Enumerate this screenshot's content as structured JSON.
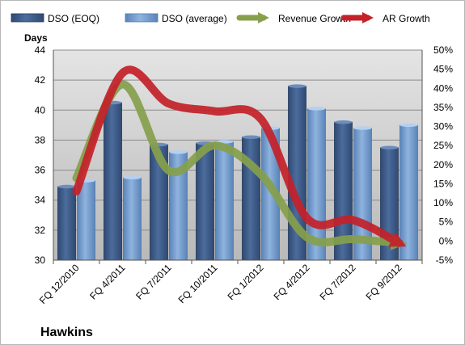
{
  "chart_data": {
    "type": "bar",
    "title": "Hawkins",
    "ylabel": "Days",
    "ylim": [
      30,
      44
    ],
    "y2lim": [
      -5,
      50
    ],
    "y_ticks": [
      "30",
      "32",
      "34",
      "36",
      "38",
      "40",
      "42",
      "44"
    ],
    "y2_ticks": [
      "-5%",
      "0%",
      "5%",
      "10%",
      "15%",
      "20%",
      "25%",
      "30%",
      "35%",
      "40%",
      "45%",
      "50%"
    ],
    "categories": [
      "FQ 12/2010",
      "FQ 4/2011",
      "FQ 7/2011",
      "FQ 10/2011",
      "FQ 1/2012",
      "FQ 4/2012",
      "FQ 7/2012",
      "FQ 9/2012"
    ],
    "series": [
      {
        "name": "DSO (EOQ)",
        "type": "bar",
        "axis": "left",
        "color": "#3f5f8f",
        "values": [
          34.9,
          40.5,
          37.7,
          37.8,
          38.2,
          41.6,
          39.2,
          37.5
        ]
      },
      {
        "name": "DSO (average)",
        "type": "bar",
        "axis": "left",
        "color": "#7fa6d4",
        "values": [
          35.3,
          35.5,
          37.2,
          37.9,
          38.8,
          40.1,
          38.8,
          39.0
        ]
      },
      {
        "name": "Revenue Growth",
        "type": "line",
        "axis": "right",
        "color": "#86a04c",
        "values": [
          16.5,
          41.0,
          18.5,
          25.0,
          17.5,
          1.0,
          0.5,
          -0.5
        ]
      },
      {
        "name": "AR Growth",
        "type": "line",
        "axis": "right",
        "color": "#c42129",
        "values": [
          13.0,
          44.0,
          36.0,
          34.0,
          32.0,
          6.0,
          5.5,
          -0.5
        ]
      }
    ],
    "grid": true,
    "legend_position": "top"
  }
}
